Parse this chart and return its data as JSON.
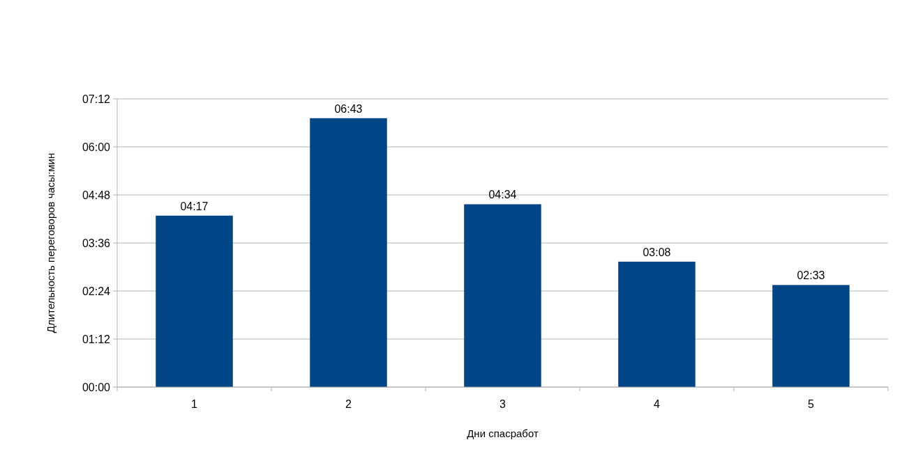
{
  "chart_data": {
    "type": "bar",
    "xlabel": "Дни спасработ",
    "ylabel": "Длительность переговоров часы:мин",
    "categories": [
      "1",
      "2",
      "3",
      "4",
      "5"
    ],
    "values": [
      4.283,
      6.717,
      4.567,
      3.133,
      2.55
    ],
    "value_labels": [
      "04:17",
      "06:43",
      "04:34",
      "03:08",
      "02:33"
    ],
    "color": "#004586",
    "ylim": [
      0,
      7.2
    ],
    "yticks": [
      {
        "value": 0,
        "label": "00:00"
      },
      {
        "value": 1.2,
        "label": "01:12"
      },
      {
        "value": 2.4,
        "label": "02:24"
      },
      {
        "value": 3.6,
        "label": "03:36"
      },
      {
        "value": 4.8,
        "label": "04:48"
      },
      {
        "value": 6,
        "label": "06:00"
      },
      {
        "value": 7.2,
        "label": "07:12"
      }
    ],
    "grid": "y"
  }
}
